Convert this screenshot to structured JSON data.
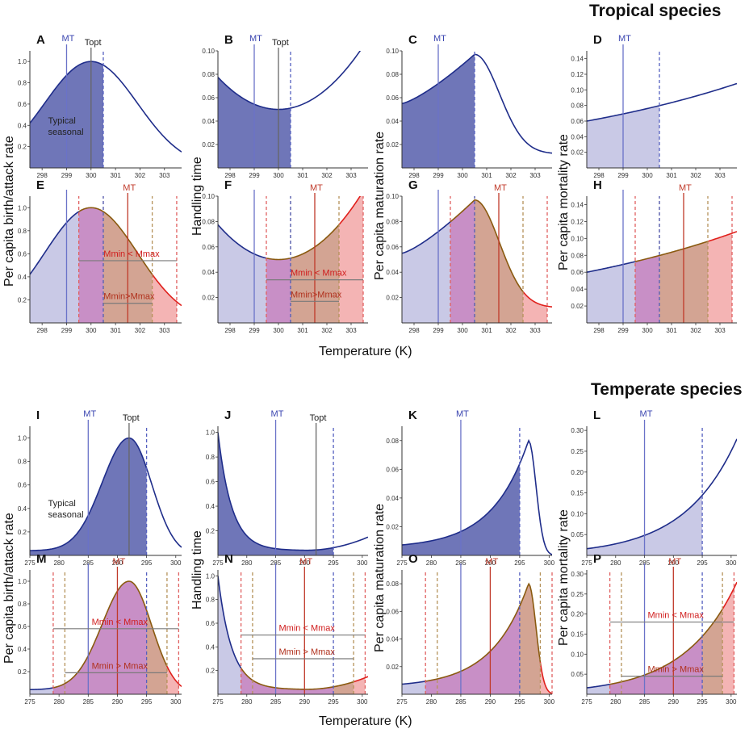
{
  "figure": {
    "tropical_title": "Tropical species",
    "temperate_title": "Temperate species",
    "xlabel": "Temperature (K)",
    "ylabels": {
      "birth_attack": "Per capita birth/attack rate",
      "handling": "Handling time",
      "maturation": "Per capita maturation rate",
      "mortality": "Per capita mortality rate"
    },
    "text": {
      "typical_seasonal": [
        "Typical",
        "seasonal"
      ],
      "mt": "MT",
      "topt": "Topt",
      "mmin_lt_mmax": "Mmin < Mmax",
      "mmin_gt_mmax": "Mmin > Mmax",
      "mmin_gt_mmax_tight": "Mmin>Mmax"
    },
    "colors": {
      "curve_blue": "#1f2d8a",
      "curve_red": "#e0201c",
      "curve_olive": "#8a5a10",
      "fill_dark_blue": "#6f76b8",
      "fill_light_blue": "#c9c9e6",
      "fill_pink": "#f4b4b4",
      "fill_purple": "#c88fc6",
      "fill_brown": "#d3a493",
      "line_mt_blue": "#6a72c8",
      "line_mt_red": "#c03a2a",
      "line_topt": "#666666",
      "dash_blue": "#5560c0",
      "dash_red": "#e06060",
      "dash_olive": "#b5925a",
      "mline": "#7a7a7a"
    }
  },
  "chart_data": [
    {
      "panel": "A",
      "type": "line",
      "xlim": [
        297.5,
        303.7
      ],
      "ylim": [
        0,
        1.1
      ],
      "xticks": [
        298,
        299,
        300,
        301,
        302,
        303
      ],
      "yticks": [
        0.2,
        0.4,
        0.6,
        0.8,
        1.0
      ],
      "tick_decimals": 1,
      "curve": "birth_trop",
      "scenario": "single",
      "mt": 299,
      "topt": 300,
      "season": [
        297.5,
        300.5
      ],
      "fill_style": "dark",
      "seasonal_text": true
    },
    {
      "panel": "B",
      "type": "line",
      "xlim": [
        297.5,
        303.7
      ],
      "ylim": [
        0,
        0.1
      ],
      "xticks": [
        298,
        299,
        300,
        301,
        302,
        303
      ],
      "yticks": [
        0.02,
        0.04,
        0.06,
        0.08,
        0.1
      ],
      "tick_decimals": 2,
      "curve": "handling_trop",
      "scenario": "single",
      "mt": 299,
      "topt": 300,
      "season": [
        297.5,
        300.5
      ],
      "fill_style": "dark"
    },
    {
      "panel": "C",
      "type": "line",
      "xlim": [
        297.5,
        303.7
      ],
      "ylim": [
        0,
        0.1
      ],
      "xticks": [
        298,
        299,
        300,
        301,
        302,
        303
      ],
      "yticks": [
        0.02,
        0.04,
        0.06,
        0.08,
        0.1
      ],
      "tick_decimals": 2,
      "curve": "maturation_trop",
      "scenario": "single",
      "mt": 299,
      "season": [
        297.5,
        300.5
      ],
      "fill_style": "dark"
    },
    {
      "panel": "D",
      "type": "line",
      "xlim": [
        297.5,
        303.7
      ],
      "ylim": [
        0,
        0.15
      ],
      "xticks": [
        298,
        299,
        300,
        301,
        302,
        303
      ],
      "yticks": [
        0.02,
        0.04,
        0.06,
        0.08,
        0.1,
        0.12,
        0.14
      ],
      "tick_decimals": 2,
      "curve": "mortality_trop",
      "scenario": "single",
      "mt": 299,
      "season": [
        297.5,
        300.5
      ],
      "fill_style": "light"
    },
    {
      "panel": "E",
      "type": "line",
      "xlim": [
        297.5,
        303.7
      ],
      "ylim": [
        0,
        1.1
      ],
      "xticks": [
        298,
        299,
        300,
        301,
        302,
        303
      ],
      "yticks": [
        0.2,
        0.4,
        0.6,
        0.8,
        1.0
      ],
      "tick_decimals": 1,
      "curve": "birth_trop",
      "scenario": "warm",
      "mt_blue": 299,
      "mt_red": 301.5,
      "season_now": [
        297.5,
        300.5
      ],
      "season_warm": [
        299.5,
        303.5
      ],
      "inner": [
        300.5,
        302.5
      ],
      "m_lt": {
        "y": 0.54,
        "x1": 299.5,
        "x2": 303.5
      },
      "m_gt": {
        "y": 0.17,
        "x1": 300.5,
        "x2": 302.5
      },
      "gt_label": "tight"
    },
    {
      "panel": "F",
      "type": "line",
      "xlim": [
        297.5,
        303.7
      ],
      "ylim": [
        0,
        0.1
      ],
      "xticks": [
        298,
        299,
        300,
        301,
        302,
        303
      ],
      "yticks": [
        0.02,
        0.04,
        0.06,
        0.08,
        0.1
      ],
      "tick_decimals": 2,
      "curve": "handling_trop",
      "scenario": "warm",
      "mt_blue": 299,
      "mt_red": 301.5,
      "season_now": [
        297.5,
        300.5
      ],
      "season_warm": [
        299.5,
        303.5
      ],
      "inner": [
        300.5,
        302.5
      ],
      "m_lt": {
        "y": 0.034,
        "x1": 299.5,
        "x2": 303.5
      },
      "m_gt": {
        "y": 0.017,
        "x1": 300.5,
        "x2": 302.5
      },
      "gt_label": "tight"
    },
    {
      "panel": "G",
      "type": "line",
      "xlim": [
        297.5,
        303.7
      ],
      "ylim": [
        0,
        0.1
      ],
      "xticks": [
        298,
        299,
        300,
        301,
        302,
        303
      ],
      "yticks": [
        0.02,
        0.04,
        0.06,
        0.08,
        0.1
      ],
      "tick_decimals": 2,
      "curve": "maturation_trop",
      "scenario": "warm",
      "mt_blue": 299,
      "mt_red": 301.5,
      "season_now": [
        297.5,
        300.5
      ],
      "season_warm": [
        299.5,
        303.5
      ],
      "inner": [
        300.5,
        302.5
      ]
    },
    {
      "panel": "H",
      "type": "line",
      "xlim": [
        297.5,
        303.7
      ],
      "ylim": [
        0,
        0.15
      ],
      "xticks": [
        298,
        299,
        300,
        301,
        302,
        303
      ],
      "yticks": [
        0.02,
        0.04,
        0.06,
        0.08,
        0.1,
        0.12,
        0.14
      ],
      "tick_decimals": 2,
      "curve": "mortality_trop",
      "scenario": "warm",
      "mt_blue": 299,
      "mt_red": 301.5,
      "season_now": [
        297.5,
        300.5
      ],
      "season_warm": [
        299.5,
        303.5
      ],
      "inner": [
        300.5,
        302.5
      ]
    },
    {
      "panel": "I",
      "type": "line",
      "xlim": [
        275,
        301
      ],
      "ylim": [
        0,
        1.1
      ],
      "xticks": [
        275,
        280,
        285,
        290,
        295,
        300
      ],
      "yticks": [
        0.2,
        0.4,
        0.6,
        0.8,
        1.0
      ],
      "tick_decimals": 1,
      "curve": "birth_temp",
      "scenario": "single",
      "mt": 285,
      "topt": 292,
      "season": [
        275,
        295
      ],
      "fill_style": "dark",
      "seasonal_text": true
    },
    {
      "panel": "J",
      "type": "line",
      "xlim": [
        275,
        301
      ],
      "ylim": [
        0,
        1.05
      ],
      "xticks": [
        275,
        280,
        285,
        290,
        295,
        300
      ],
      "yticks": [
        0.2,
        0.4,
        0.6,
        0.8,
        1.0
      ],
      "tick_decimals": 1,
      "curve": "handling_temp",
      "scenario": "single",
      "mt": 285,
      "topt": 292,
      "season": [
        275,
        295
      ],
      "fill_style": "dark"
    },
    {
      "panel": "K",
      "type": "line",
      "xlim": [
        275,
        300.5
      ],
      "ylim": [
        0,
        0.09
      ],
      "xticks": [
        275,
        280,
        285,
        290,
        295,
        300
      ],
      "yticks": [
        0.02,
        0.04,
        0.06,
        0.08
      ],
      "tick_decimals": 2,
      "curve": "maturation_temp",
      "scenario": "single",
      "mt": 285,
      "season": [
        275,
        295
      ],
      "fill_style": "dark"
    },
    {
      "panel": "L",
      "type": "line",
      "xlim": [
        275,
        301
      ],
      "ylim": [
        0,
        0.31
      ],
      "xticks": [
        275,
        280,
        285,
        290,
        295,
        300
      ],
      "yticks": [
        0.05,
        0.1,
        0.15,
        0.2,
        0.25,
        0.3
      ],
      "tick_decimals": 2,
      "curve": "mortality_temp",
      "scenario": "single",
      "mt": 285,
      "season": [
        275,
        295
      ],
      "fill_style": "light"
    },
    {
      "panel": "M",
      "type": "line",
      "xlim": [
        275,
        301
      ],
      "ylim": [
        0,
        1.1
      ],
      "xticks": [
        275,
        280,
        285,
        290,
        295,
        300
      ],
      "yticks": [
        0.2,
        0.4,
        0.6,
        0.8,
        1.0
      ],
      "tick_decimals": 1,
      "curve": "birth_temp",
      "scenario": "warm",
      "mt_blue": 285,
      "mt_red": 290,
      "season_now": [
        275,
        295
      ],
      "season_warm": [
        279,
        300.5
      ],
      "inner": [
        281,
        298.5
      ],
      "m_lt": {
        "y": 0.58,
        "x1": 279,
        "x2": 300.5
      },
      "m_gt": {
        "y": 0.19,
        "x1": 281,
        "x2": 298.5
      }
    },
    {
      "panel": "N",
      "type": "line",
      "xlim": [
        275,
        301
      ],
      "ylim": [
        0,
        1.05
      ],
      "xticks": [
        275,
        280,
        285,
        290,
        295,
        300
      ],
      "yticks": [
        0.2,
        0.4,
        0.6,
        0.8,
        1.0
      ],
      "tick_decimals": 1,
      "curve": "handling_temp",
      "scenario": "warm",
      "mt_blue": 285,
      "mt_red": 290,
      "season_now": [
        275,
        295
      ],
      "season_warm": [
        279,
        300.5
      ],
      "inner": [
        281,
        298.5
      ],
      "m_lt": {
        "y": 0.5,
        "x1": 279,
        "x2": 300.5
      },
      "m_gt": {
        "y": 0.3,
        "x1": 281,
        "x2": 298.5
      }
    },
    {
      "panel": "O",
      "type": "line",
      "xlim": [
        275,
        300.5
      ],
      "ylim": [
        0,
        0.09
      ],
      "xticks": [
        275,
        280,
        285,
        290,
        295,
        300
      ],
      "yticks": [
        0.02,
        0.04,
        0.06,
        0.08
      ],
      "tick_decimals": 2,
      "curve": "maturation_temp",
      "scenario": "warm",
      "mt_blue": 285,
      "mt_red": 290,
      "season_now": [
        275,
        295
      ],
      "season_warm": [
        279,
        300.5
      ],
      "inner": [
        281,
        298.5
      ]
    },
    {
      "panel": "P",
      "type": "line",
      "xlim": [
        275,
        301
      ],
      "ylim": [
        0,
        0.31
      ],
      "xticks": [
        275,
        280,
        285,
        290,
        295,
        300
      ],
      "yticks": [
        0.05,
        0.1,
        0.15,
        0.2,
        0.25,
        0.3
      ],
      "tick_decimals": 2,
      "curve": "mortality_temp",
      "scenario": "warm",
      "mt_blue": 285,
      "mt_red": 290,
      "season_now": [
        275,
        295
      ],
      "season_warm": [
        279,
        300.5
      ],
      "inner": [
        281,
        298.5
      ],
      "m_lt": {
        "y": 0.18,
        "x1": 279,
        "x2": 300.5
      },
      "m_gt": {
        "y": 0.045,
        "x1": 281,
        "x2": 298.5
      }
    }
  ]
}
